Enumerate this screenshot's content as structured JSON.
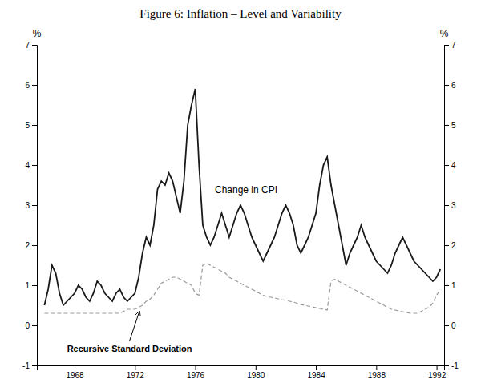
{
  "chart_data": {
    "type": "line",
    "title": "Figure 6: Inflation – Level and Variability",
    "ylabel": "%",
    "y2label": "%",
    "xlim": [
      1965.5,
      1992.5
    ],
    "xticks": [
      1968,
      1972,
      1976,
      1980,
      1984,
      1988,
      1992
    ],
    "ylim": [
      -1,
      7
    ],
    "yticks": [
      -1,
      0,
      1,
      2,
      3,
      4,
      5,
      6,
      7
    ],
    "y2lim": [
      -1,
      7
    ],
    "y2ticks": [
      -1,
      0,
      1,
      2,
      3,
      4,
      5,
      6,
      7
    ],
    "grid": false,
    "x": [
      1966.0,
      1966.25,
      1966.5,
      1966.75,
      1967.0,
      1967.25,
      1967.5,
      1967.75,
      1968.0,
      1968.25,
      1968.5,
      1968.75,
      1969.0,
      1969.25,
      1969.5,
      1969.75,
      1970.0,
      1970.25,
      1970.5,
      1970.75,
      1971.0,
      1971.25,
      1971.5,
      1971.75,
      1972.0,
      1972.25,
      1972.5,
      1972.75,
      1973.0,
      1973.25,
      1973.5,
      1973.75,
      1974.0,
      1974.25,
      1974.5,
      1974.75,
      1975.0,
      1975.25,
      1975.5,
      1975.75,
      1976.0,
      1976.25,
      1976.5,
      1976.75,
      1977.0,
      1977.25,
      1977.5,
      1977.75,
      1978.0,
      1978.25,
      1978.5,
      1978.75,
      1979.0,
      1979.25,
      1979.5,
      1979.75,
      1980.0,
      1980.25,
      1980.5,
      1980.75,
      1981.0,
      1981.25,
      1981.5,
      1981.75,
      1982.0,
      1982.25,
      1982.5,
      1982.75,
      1983.0,
      1983.25,
      1983.5,
      1983.75,
      1984.0,
      1984.25,
      1984.5,
      1984.75,
      1985.0,
      1985.25,
      1985.5,
      1985.75,
      1986.0,
      1986.25,
      1986.5,
      1986.75,
      1987.0,
      1987.25,
      1987.5,
      1987.75,
      1988.0,
      1988.25,
      1988.5,
      1988.75,
      1989.0,
      1989.25,
      1989.5,
      1989.75,
      1990.0,
      1990.25,
      1990.5,
      1990.75,
      1991.0,
      1991.25,
      1991.5,
      1991.75,
      1992.0,
      1992.25
    ],
    "series": [
      {
        "color": "#1a1a1a",
        "line_style": "solid",
        "values": [
          0.5,
          0.9,
          1.5,
          1.3,
          0.8,
          0.5,
          0.6,
          0.7,
          0.8,
          1.0,
          0.9,
          0.7,
          0.6,
          0.8,
          1.1,
          1.0,
          0.8,
          0.7,
          0.6,
          0.8,
          0.9,
          0.7,
          0.6,
          0.7,
          0.8,
          1.2,
          1.8,
          2.2,
          2.0,
          2.5,
          3.4,
          3.6,
          3.5,
          3.8,
          3.6,
          3.2,
          2.8,
          3.6,
          5.0,
          5.5,
          5.9,
          4.0,
          2.5,
          2.2,
          2.0,
          2.2,
          2.5,
          2.8,
          2.5,
          2.2,
          2.5,
          2.8,
          3.0,
          2.8,
          2.5,
          2.2,
          2.0,
          1.8,
          1.6,
          1.8,
          2.0,
          2.2,
          2.5,
          2.8,
          3.0,
          2.8,
          2.5,
          2.0,
          1.8,
          2.0,
          2.2,
          2.5,
          2.8,
          3.5,
          4.0,
          4.2,
          3.5,
          3.0,
          2.5,
          2.0,
          1.5,
          1.8,
          2.0,
          2.2,
          2.5,
          2.2,
          2.0,
          1.8,
          1.6,
          1.5,
          1.4,
          1.3,
          1.5,
          1.8,
          2.0,
          2.2,
          2.0,
          1.8,
          1.6,
          1.5,
          1.4,
          1.3,
          1.2,
          1.1,
          1.2,
          1.4
        ]
      },
      {
        "color": "#999999",
        "line_style": "dashed",
        "values": [
          0.3,
          0.3,
          0.3,
          0.3,
          0.3,
          0.3,
          0.3,
          0.3,
          0.3,
          0.3,
          0.3,
          0.3,
          0.3,
          0.3,
          0.3,
          0.3,
          0.3,
          0.3,
          0.3,
          0.3,
          0.3,
          0.35,
          0.4,
          0.4,
          0.4,
          0.45,
          0.5,
          0.6,
          0.65,
          0.75,
          0.9,
          1.05,
          1.1,
          1.15,
          1.2,
          1.2,
          1.15,
          1.1,
          1.05,
          1.0,
          0.8,
          0.75,
          1.5,
          1.55,
          1.5,
          1.45,
          1.4,
          1.35,
          1.3,
          1.2,
          1.15,
          1.1,
          1.05,
          1.0,
          0.95,
          0.9,
          0.85,
          0.8,
          0.75,
          0.72,
          0.7,
          0.68,
          0.66,
          0.64,
          0.62,
          0.6,
          0.58,
          0.55,
          0.52,
          0.5,
          0.48,
          0.46,
          0.44,
          0.42,
          0.4,
          0.38,
          1.1,
          1.15,
          1.1,
          1.05,
          1.0,
          0.95,
          0.9,
          0.85,
          0.8,
          0.75,
          0.7,
          0.65,
          0.6,
          0.55,
          0.5,
          0.45,
          0.4,
          0.38,
          0.36,
          0.34,
          0.32,
          0.3,
          0.3,
          0.3,
          0.35,
          0.4,
          0.45,
          0.55,
          0.75,
          0.9
        ]
      }
    ],
    "annotations": [
      {
        "text": "Change in CPI",
        "x": 1977.3,
        "y": 3.3
      },
      {
        "text": "Recursive Standard Deviation",
        "x": 1967.5,
        "y": -0.65,
        "arrow_x": 1972.3,
        "arrow_y": 0.35
      }
    ]
  }
}
